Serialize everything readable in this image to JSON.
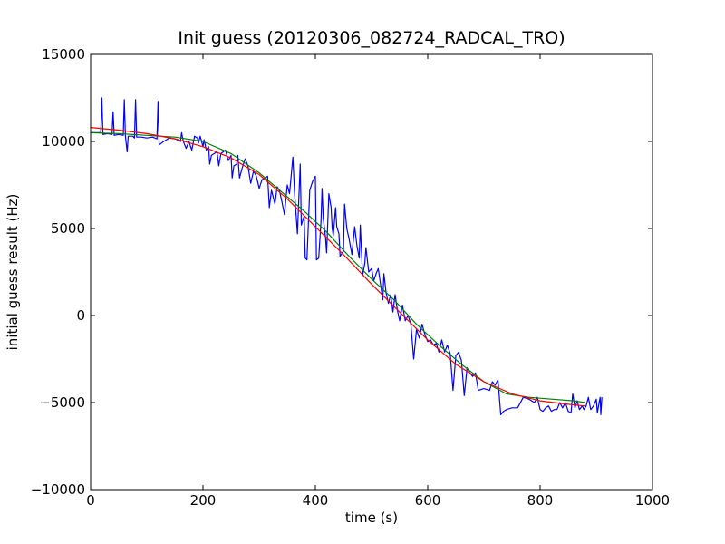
{
  "chart_data": {
    "type": "line",
    "title": "Init guess (20120306_082724_RADCAL_TRO)",
    "xlabel": "time (s)",
    "ylabel": "initial guess result (Hz)",
    "xlim": [
      0,
      1000
    ],
    "ylim": [
      -10000,
      15000
    ],
    "x_ticks": [
      0,
      200,
      400,
      600,
      800,
      1000
    ],
    "y_ticks": [
      -10000,
      -5000,
      0,
      5000,
      10000,
      15000
    ],
    "x_tick_labels": [
      "0",
      "200",
      "400",
      "600",
      "800",
      "1000"
    ],
    "y_tick_labels": [
      "−10000",
      "−5000",
      "0",
      "5000",
      "10000",
      "15000"
    ],
    "grid": false,
    "legend": "none",
    "series": [
      {
        "color": "#0000ff",
        "style": "raw-noisy",
        "points": [
          [
            0,
            10500
          ],
          [
            18,
            10500
          ],
          [
            20,
            12500
          ],
          [
            22,
            10400
          ],
          [
            30,
            10450
          ],
          [
            38,
            10400
          ],
          [
            40,
            11700
          ],
          [
            42,
            10350
          ],
          [
            50,
            10400
          ],
          [
            58,
            10350
          ],
          [
            60,
            12400
          ],
          [
            62,
            10300
          ],
          [
            65,
            9400
          ],
          [
            67,
            10300
          ],
          [
            75,
            10300
          ],
          [
            78,
            10200
          ],
          [
            80,
            12400
          ],
          [
            82,
            10250
          ],
          [
            90,
            10250
          ],
          [
            100,
            10200
          ],
          [
            110,
            10250
          ],
          [
            118,
            10150
          ],
          [
            120,
            12300
          ],
          [
            122,
            9800
          ],
          [
            130,
            10000
          ],
          [
            140,
            10200
          ],
          [
            150,
            10150
          ],
          [
            160,
            10000
          ],
          [
            162,
            10500
          ],
          [
            165,
            10000
          ],
          [
            170,
            9600
          ],
          [
            175,
            10000
          ],
          [
            180,
            9500
          ],
          [
            185,
            10300
          ],
          [
            190,
            10200
          ],
          [
            192,
            9900
          ],
          [
            195,
            10300
          ],
          [
            200,
            9700
          ],
          [
            202,
            10100
          ],
          [
            206,
            9500
          ],
          [
            210,
            9700
          ],
          [
            212,
            8700
          ],
          [
            215,
            9200
          ],
          [
            220,
            9300
          ],
          [
            225,
            9400
          ],
          [
            228,
            8600
          ],
          [
            232,
            9300
          ],
          [
            240,
            9500
          ],
          [
            245,
            8900
          ],
          [
            250,
            9200
          ],
          [
            252,
            7900
          ],
          [
            255,
            8600
          ],
          [
            260,
            8700
          ],
          [
            262,
            9200
          ],
          [
            265,
            7900
          ],
          [
            270,
            8500
          ],
          [
            275,
            9000
          ],
          [
            280,
            8600
          ],
          [
            285,
            7600
          ],
          [
            290,
            8300
          ],
          [
            295,
            8000
          ],
          [
            300,
            7300
          ],
          [
            305,
            7800
          ],
          [
            310,
            7900
          ],
          [
            315,
            8000
          ],
          [
            318,
            6200
          ],
          [
            322,
            7200
          ],
          [
            328,
            6400
          ],
          [
            332,
            7400
          ],
          [
            336,
            7200
          ],
          [
            340,
            6600
          ],
          [
            345,
            5800
          ],
          [
            350,
            7500
          ],
          [
            354,
            7000
          ],
          [
            360,
            9100
          ],
          [
            363,
            7000
          ],
          [
            368,
            4700
          ],
          [
            373,
            8700
          ],
          [
            375,
            5200
          ],
          [
            380,
            5700
          ],
          [
            382,
            3300
          ],
          [
            385,
            3200
          ],
          [
            390,
            7200
          ],
          [
            395,
            7700
          ],
          [
            400,
            8000
          ],
          [
            402,
            3200
          ],
          [
            406,
            3300
          ],
          [
            410,
            5400
          ],
          [
            412,
            7300
          ],
          [
            414,
            5600
          ],
          [
            418,
            4500
          ],
          [
            420,
            3600
          ],
          [
            424,
            7000
          ],
          [
            428,
            6200
          ],
          [
            430,
            5000
          ],
          [
            432,
            4600
          ],
          [
            436,
            6200
          ],
          [
            438,
            5100
          ],
          [
            442,
            4700
          ],
          [
            444,
            3400
          ],
          [
            450,
            3700
          ],
          [
            452,
            6400
          ],
          [
            456,
            5000
          ],
          [
            460,
            4400
          ],
          [
            465,
            3500
          ],
          [
            470,
            5100
          ],
          [
            474,
            4000
          ],
          [
            478,
            3300
          ],
          [
            480,
            5200
          ],
          [
            484,
            2300
          ],
          [
            488,
            3000
          ],
          [
            490,
            3900
          ],
          [
            495,
            2500
          ],
          [
            500,
            2700
          ],
          [
            504,
            2000
          ],
          [
            508,
            2400
          ],
          [
            512,
            2700
          ],
          [
            516,
            1800
          ],
          [
            520,
            900
          ],
          [
            522,
            2400
          ],
          [
            526,
            1300
          ],
          [
            530,
            700
          ],
          [
            534,
            1200
          ],
          [
            538,
            200
          ],
          [
            542,
            1200
          ],
          [
            546,
            300
          ],
          [
            550,
            -300
          ],
          [
            555,
            600
          ],
          [
            560,
            -300
          ],
          [
            565,
            0
          ],
          [
            570,
            -500
          ],
          [
            575,
            -2500
          ],
          [
            580,
            -800
          ],
          [
            585,
            -1300
          ],
          [
            590,
            -500
          ],
          [
            595,
            -1100
          ],
          [
            600,
            -1500
          ],
          [
            605,
            -1400
          ],
          [
            610,
            -1700
          ],
          [
            615,
            -1600
          ],
          [
            620,
            -2100
          ],
          [
            625,
            -1400
          ],
          [
            630,
            -2100
          ],
          [
            635,
            -1700
          ],
          [
            640,
            -2200
          ],
          [
            645,
            -4300
          ],
          [
            650,
            -2300
          ],
          [
            655,
            -2100
          ],
          [
            660,
            -2600
          ],
          [
            665,
            -4600
          ],
          [
            670,
            -3000
          ],
          [
            675,
            -3300
          ],
          [
            680,
            -3500
          ],
          [
            685,
            -3300
          ],
          [
            690,
            -4300
          ],
          [
            700,
            -4200
          ],
          [
            710,
            -4300
          ],
          [
            715,
            -3800
          ],
          [
            720,
            -4000
          ],
          [
            725,
            -3700
          ],
          [
            730,
            -5700
          ],
          [
            735,
            -5500
          ],
          [
            740,
            -5400
          ],
          [
            750,
            -5300
          ],
          [
            760,
            -5300
          ],
          [
            770,
            -4700
          ],
          [
            780,
            -4800
          ],
          [
            790,
            -5000
          ],
          [
            795,
            -4700
          ],
          [
            800,
            -5400
          ],
          [
            805,
            -5500
          ],
          [
            810,
            -5300
          ],
          [
            815,
            -5200
          ],
          [
            820,
            -5500
          ],
          [
            825,
            -5400
          ],
          [
            830,
            -5400
          ],
          [
            835,
            -5000
          ],
          [
            840,
            -5300
          ],
          [
            845,
            -5000
          ],
          [
            850,
            -5500
          ],
          [
            855,
            -5600
          ],
          [
            858,
            -4500
          ],
          [
            862,
            -5300
          ],
          [
            866,
            -4900
          ],
          [
            870,
            -5400
          ],
          [
            875,
            -5200
          ],
          [
            878,
            -5400
          ],
          [
            882,
            -5200
          ],
          [
            886,
            -4700
          ],
          [
            890,
            -5400
          ],
          [
            895,
            -5200
          ],
          [
            900,
            -4800
          ],
          [
            902,
            -5600
          ],
          [
            905,
            -5000
          ],
          [
            907,
            -4700
          ],
          [
            908,
            -5700
          ],
          [
            910,
            -4700
          ]
        ]
      },
      {
        "color": "#008000",
        "style": "smoothed",
        "points": [
          [
            0,
            10500
          ],
          [
            50,
            10450
          ],
          [
            100,
            10350
          ],
          [
            150,
            10250
          ],
          [
            200,
            10000
          ],
          [
            250,
            9300
          ],
          [
            300,
            8200
          ],
          [
            340,
            7100
          ],
          [
            380,
            6000
          ],
          [
            420,
            4800
          ],
          [
            460,
            3400
          ],
          [
            500,
            2100
          ],
          [
            540,
            900
          ],
          [
            580,
            -500
          ],
          [
            620,
            -1700
          ],
          [
            660,
            -2800
          ],
          [
            700,
            -3800
          ],
          [
            740,
            -4500
          ],
          [
            780,
            -4700
          ],
          [
            820,
            -4800
          ],
          [
            860,
            -4900
          ],
          [
            880,
            -5000
          ]
        ]
      },
      {
        "color": "#ff0000",
        "style": "fit",
        "points": [
          [
            0,
            10800
          ],
          [
            50,
            10650
          ],
          [
            100,
            10450
          ],
          [
            150,
            10150
          ],
          [
            200,
            9700
          ],
          [
            250,
            9050
          ],
          [
            300,
            8100
          ],
          [
            350,
            6700
          ],
          [
            400,
            5100
          ],
          [
            450,
            3500
          ],
          [
            500,
            1800
          ],
          [
            550,
            200
          ],
          [
            600,
            -1400
          ],
          [
            650,
            -2800
          ],
          [
            700,
            -3800
          ],
          [
            750,
            -4500
          ],
          [
            800,
            -4900
          ],
          [
            850,
            -5100
          ],
          [
            880,
            -5200
          ]
        ]
      }
    ]
  }
}
